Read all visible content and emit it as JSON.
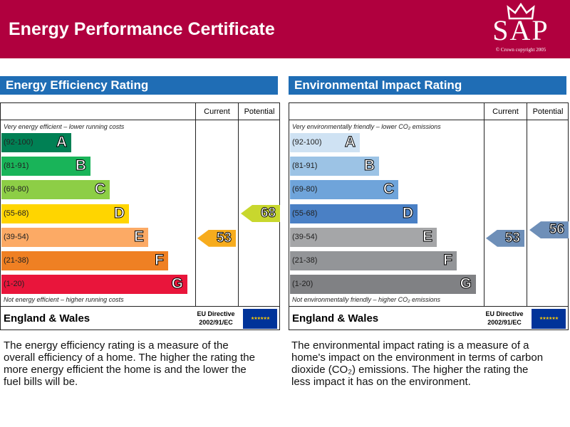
{
  "header": {
    "title": "Energy Performance Certificate",
    "logo_text": "SAP",
    "logo_copyright": "© Crown copyright 2005",
    "brand_color": "#B0003E"
  },
  "panels": [
    {
      "title": "Energy Efficiency Rating",
      "col_current": "Current",
      "col_potential": "Potential",
      "top_text": "Very energy efficient – lower running costs",
      "bottom_text": "Not energy efficient – higher running costs",
      "bands": [
        {
          "range": "(92-100)",
          "letter": "A",
          "color": "#008054"
        },
        {
          "range": "(81-91)",
          "letter": "B",
          "color": "#19B459"
        },
        {
          "range": "(69-80)",
          "letter": "C",
          "color": "#8DCE46"
        },
        {
          "range": "(55-68)",
          "letter": "D",
          "color": "#FFD500"
        },
        {
          "range": "(39-54)",
          "letter": "E",
          "color": "#FCAA65"
        },
        {
          "range": "(21-38)",
          "letter": "F",
          "color": "#EF8023"
        },
        {
          "range": "(1-20)",
          "letter": "G",
          "color": "#E9153B"
        }
      ],
      "current": {
        "value": "53",
        "color": "#F7AC1D"
      },
      "potential": {
        "value": "68",
        "color": "#C8D72E"
      },
      "region": "England & Wales",
      "directive_line1": "EU Directive",
      "directive_line2": "2002/91/EC",
      "description": "The energy efficiency rating is a measure of the overall efficiency of a home. The higher the rating the more energy efficient the home is and the lower the fuel bills will be."
    },
    {
      "title": "Environmental Impact Rating",
      "col_current": "Current",
      "col_potential": "Potential",
      "top_text": "Very environmentally friendly – lower CO₂ emissions",
      "bottom_text": "Not environmentally friendly – higher CO₂ emissions",
      "bands": [
        {
          "range": "(92-100)",
          "letter": "A",
          "color": "#CFE2F3"
        },
        {
          "range": "(81-91)",
          "letter": "B",
          "color": "#9CC3E5"
        },
        {
          "range": "(69-80)",
          "letter": "C",
          "color": "#6FA4DA"
        },
        {
          "range": "(55-68)",
          "letter": "D",
          "color": "#4A80C5"
        },
        {
          "range": "(39-54)",
          "letter": "E",
          "color": "#A5A6A8"
        },
        {
          "range": "(21-38)",
          "letter": "F",
          "color": "#939598"
        },
        {
          "range": "(1-20)",
          "letter": "G",
          "color": "#808184"
        }
      ],
      "current": {
        "value": "53",
        "color": "#6E8FB8"
      },
      "potential": {
        "value": "56",
        "color": "#6E8FB8"
      },
      "region": "England & Wales",
      "directive_line1": "EU Directive",
      "directive_line2": "2002/91/EC",
      "description": "The environmental impact rating is a measure of a home's impact on the environment in terms of carbon dioxide (CO₂) emissions. The higher the rating the less impact it has on the environment."
    }
  ]
}
